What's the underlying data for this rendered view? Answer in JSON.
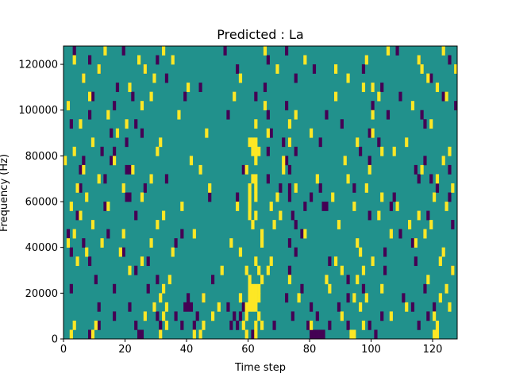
{
  "chart_data": {
    "type": "heatmap",
    "title": "Predicted : La",
    "xlabel": "Time step",
    "ylabel": "Frequency (Hz)",
    "xlim": [
      0,
      128
    ],
    "ylim": [
      0,
      128000
    ],
    "x_ticks": [
      0,
      20,
      40,
      60,
      80,
      100,
      120
    ],
    "y_ticks": [
      0,
      20000,
      40000,
      60000,
      80000,
      100000,
      120000
    ],
    "x_tick_labels": [
      "0",
      "20",
      "40",
      "60",
      "80",
      "100",
      "120"
    ],
    "y_tick_labels": [
      "0",
      "20000",
      "40000",
      "60000",
      "80000",
      "100000",
      "120000"
    ],
    "grid": false,
    "legend": "none",
    "colors": {
      "background": "#21918c",
      "low": "#440154",
      "high": "#fde725"
    },
    "cell_height": 4000,
    "cells_low": [
      [
        8,
        0
      ],
      [
        9,
        0
      ],
      [
        24,
        0
      ],
      [
        25,
        0
      ],
      [
        61,
        0
      ],
      [
        80,
        0
      ],
      [
        81,
        0
      ],
      [
        82,
        0
      ],
      [
        83,
        0
      ],
      [
        84,
        0
      ],
      [
        101,
        0
      ],
      [
        11,
        1
      ],
      [
        23,
        1
      ],
      [
        31,
        1
      ],
      [
        38,
        1
      ],
      [
        42,
        1
      ],
      [
        54,
        1
      ],
      [
        56,
        1
      ],
      [
        68,
        1
      ],
      [
        79,
        1
      ],
      [
        86,
        1
      ],
      [
        92,
        1
      ],
      [
        99,
        1
      ],
      [
        115,
        1
      ],
      [
        16,
        2
      ],
      [
        30,
        2
      ],
      [
        36,
        2
      ],
      [
        43,
        2
      ],
      [
        55,
        2
      ],
      [
        57,
        2
      ],
      [
        74,
        2
      ],
      [
        82,
        2
      ],
      [
        103,
        2
      ],
      [
        118,
        2
      ],
      [
        11,
        3
      ],
      [
        21,
        3
      ],
      [
        39,
        3
      ],
      [
        40,
        3
      ],
      [
        41,
        3
      ],
      [
        53,
        3
      ],
      [
        58,
        3
      ],
      [
        80,
        3
      ],
      [
        89,
        3
      ],
      [
        113,
        3
      ],
      [
        120,
        3
      ],
      [
        40,
        4
      ],
      [
        45,
        4
      ],
      [
        72,
        4
      ],
      [
        92,
        4
      ],
      [
        110,
        4
      ],
      [
        2,
        5
      ],
      [
        16,
        5
      ],
      [
        27,
        5
      ],
      [
        77,
        5
      ],
      [
        97,
        5
      ],
      [
        117,
        5
      ],
      [
        10,
        6
      ],
      [
        30,
        6
      ],
      [
        48,
        6
      ],
      [
        92,
        6
      ],
      [
        23,
        7
      ],
      [
        73,
        7
      ],
      [
        104,
        7
      ],
      [
        126,
        7
      ],
      [
        8,
        8
      ],
      [
        27,
        8
      ],
      [
        86,
        8
      ],
      [
        114,
        8
      ],
      [
        2,
        9
      ],
      [
        19,
        9
      ],
      [
        75,
        9
      ],
      [
        104,
        9
      ],
      [
        6,
        10
      ],
      [
        36,
        10
      ],
      [
        73,
        10
      ],
      [
        113,
        10
      ],
      [
        1,
        11
      ],
      [
        14,
        11
      ],
      [
        38,
        11
      ],
      [
        77,
        11
      ],
      [
        109,
        11
      ],
      [
        9,
        12
      ],
      [
        75,
        12
      ],
      [
        126,
        12
      ],
      [
        4,
        13
      ],
      [
        23,
        13
      ],
      [
        60,
        13
      ],
      [
        74,
        13
      ],
      [
        99,
        13
      ],
      [
        118,
        13
      ],
      [
        13,
        14
      ],
      [
        78,
        14
      ],
      [
        84,
        14
      ],
      [
        85,
        14
      ],
      [
        106,
        14
      ],
      [
        20,
        15
      ],
      [
        21,
        15
      ],
      [
        47,
        15
      ],
      [
        56,
        15
      ],
      [
        73,
        15
      ],
      [
        80,
        15
      ],
      [
        107,
        15
      ],
      [
        125,
        15
      ],
      [
        5,
        16
      ],
      [
        26,
        16
      ],
      [
        70,
        16
      ],
      [
        73,
        16
      ],
      [
        83,
        16
      ],
      [
        94,
        16
      ],
      [
        121,
        16
      ],
      [
        13,
        17
      ],
      [
        33,
        17
      ],
      [
        66,
        17
      ],
      [
        115,
        17
      ],
      [
        119,
        17
      ],
      [
        5,
        18
      ],
      [
        20,
        18
      ],
      [
        21,
        18
      ],
      [
        58,
        18
      ],
      [
        73,
        18
      ],
      [
        114,
        18
      ],
      [
        125,
        18
      ],
      [
        6,
        19
      ],
      [
        15,
        19
      ],
      [
        72,
        19
      ],
      [
        99,
        19
      ],
      [
        117,
        19
      ],
      [
        12,
        20
      ],
      [
        16,
        20
      ],
      [
        66,
        20
      ],
      [
        75,
        20
      ],
      [
        96,
        20
      ],
      [
        20,
        21
      ],
      [
        71,
        21
      ],
      [
        73,
        21
      ],
      [
        83,
        21
      ],
      [
        102,
        21
      ],
      [
        15,
        22
      ],
      [
        25,
        22
      ],
      [
        67,
        22
      ],
      [
        99,
        22
      ],
      [
        2,
        23
      ],
      [
        23,
        23
      ],
      [
        90,
        23
      ],
      [
        117,
        23
      ],
      [
        8,
        24
      ],
      [
        53,
        24
      ],
      [
        66,
        24
      ],
      [
        85,
        24
      ],
      [
        105,
        24
      ],
      [
        116,
        24
      ],
      [
        1,
        25
      ],
      [
        16,
        25
      ],
      [
        72,
        25
      ],
      [
        100,
        25
      ],
      [
        127,
        25
      ],
      [
        9,
        26
      ],
      [
        22,
        26
      ],
      [
        39,
        26
      ],
      [
        62,
        26
      ],
      [
        109,
        26
      ],
      [
        123,
        26
      ],
      [
        17,
        27
      ],
      [
        44,
        27
      ],
      [
        65,
        27
      ],
      [
        103,
        27
      ],
      [
        6,
        28
      ],
      [
        33,
        28
      ],
      [
        75,
        28
      ],
      [
        119,
        28
      ],
      [
        11,
        29
      ],
      [
        26,
        29
      ],
      [
        56,
        29
      ],
      [
        81,
        29
      ],
      [
        97,
        29
      ],
      [
        8,
        30
      ],
      [
        30,
        30
      ],
      [
        66,
        30
      ],
      [
        115,
        30
      ],
      [
        125,
        30
      ],
      [
        3,
        31
      ],
      [
        19,
        31
      ],
      [
        52,
        31
      ],
      [
        72,
        31
      ],
      [
        108,
        31
      ]
    ],
    "cells_high": [
      [
        2,
        0
      ],
      [
        9,
        0
      ],
      [
        31,
        0
      ],
      [
        42,
        0
      ],
      [
        44,
        0
      ],
      [
        59,
        0
      ],
      [
        62,
        0
      ],
      [
        93,
        0
      ],
      [
        94,
        0
      ],
      [
        120,
        0
      ],
      [
        121,
        0
      ],
      [
        3,
        1
      ],
      [
        10,
        1
      ],
      [
        33,
        1
      ],
      [
        45,
        1
      ],
      [
        58,
        1
      ],
      [
        62,
        1
      ],
      [
        64,
        1
      ],
      [
        80,
        1
      ],
      [
        97,
        1
      ],
      [
        121,
        1
      ],
      [
        26,
        2
      ],
      [
        32,
        2
      ],
      [
        48,
        2
      ],
      [
        59,
        2
      ],
      [
        63,
        2
      ],
      [
        90,
        2
      ],
      [
        106,
        2
      ],
      [
        120,
        2
      ],
      [
        29,
        3
      ],
      [
        33,
        3
      ],
      [
        50,
        3
      ],
      [
        59,
        3
      ],
      [
        60,
        3
      ],
      [
        61,
        3
      ],
      [
        62,
        3
      ],
      [
        96,
        3
      ],
      [
        111,
        3
      ],
      [
        125,
        3
      ],
      [
        31,
        4
      ],
      [
        45,
        4
      ],
      [
        57,
        4
      ],
      [
        60,
        4
      ],
      [
        61,
        4
      ],
      [
        62,
        4
      ],
      [
        63,
        4
      ],
      [
        76,
        4
      ],
      [
        94,
        4
      ],
      [
        98,
        4
      ],
      [
        122,
        4
      ],
      [
        32,
        5
      ],
      [
        60,
        5
      ],
      [
        61,
        5
      ],
      [
        62,
        5
      ],
      [
        63,
        5
      ],
      [
        86,
        5
      ],
      [
        103,
        5
      ],
      [
        124,
        5
      ],
      [
        34,
        6
      ],
      [
        60,
        6
      ],
      [
        64,
        6
      ],
      [
        73,
        6
      ],
      [
        85,
        6
      ],
      [
        95,
        6
      ],
      [
        118,
        6
      ],
      [
        21,
        7
      ],
      [
        51,
        7
      ],
      [
        59,
        7
      ],
      [
        63,
        7
      ],
      [
        66,
        7
      ],
      [
        90,
        7
      ],
      [
        97,
        7
      ],
      [
        126,
        7
      ],
      [
        4,
        8
      ],
      [
        25,
        8
      ],
      [
        62,
        8
      ],
      [
        67,
        8
      ],
      [
        88,
        8
      ],
      [
        100,
        8
      ],
      [
        122,
        8
      ],
      [
        7,
        9
      ],
      [
        18,
        9
      ],
      [
        35,
        9
      ],
      [
        57,
        9
      ],
      [
        96,
        9
      ],
      [
        123,
        9
      ],
      [
        1,
        10
      ],
      [
        12,
        10
      ],
      [
        28,
        10
      ],
      [
        54,
        10
      ],
      [
        64,
        10
      ],
      [
        95,
        10
      ],
      [
        114,
        10
      ],
      [
        3,
        11
      ],
      [
        19,
        11
      ],
      [
        42,
        11
      ],
      [
        64,
        11
      ],
      [
        78,
        11
      ],
      [
        106,
        11
      ],
      [
        117,
        11
      ],
      [
        9,
        12
      ],
      [
        30,
        12
      ],
      [
        61,
        12
      ],
      [
        68,
        12
      ],
      [
        89,
        12
      ],
      [
        112,
        12
      ],
      [
        119,
        12
      ],
      [
        5,
        13
      ],
      [
        32,
        13
      ],
      [
        60,
        13
      ],
      [
        62,
        13
      ],
      [
        70,
        13
      ],
      [
        102,
        13
      ],
      [
        115,
        13
      ],
      [
        2,
        14
      ],
      [
        14,
        14
      ],
      [
        38,
        14
      ],
      [
        56,
        14
      ],
      [
        60,
        14
      ],
      [
        67,
        14
      ],
      [
        94,
        14
      ],
      [
        108,
        14
      ],
      [
        124,
        14
      ],
      [
        7,
        15
      ],
      [
        25,
        15
      ],
      [
        60,
        15
      ],
      [
        62,
        15
      ],
      [
        69,
        15
      ],
      [
        87,
        15
      ],
      [
        103,
        15
      ],
      [
        120,
        15
      ],
      [
        4,
        16
      ],
      [
        19,
        16
      ],
      [
        47,
        16
      ],
      [
        60,
        16
      ],
      [
        62,
        16
      ],
      [
        75,
        16
      ],
      [
        98,
        16
      ],
      [
        126,
        16
      ],
      [
        11,
        17
      ],
      [
        28,
        17
      ],
      [
        61,
        17
      ],
      [
        62,
        17
      ],
      [
        82,
        17
      ],
      [
        92,
        17
      ],
      [
        121,
        17
      ],
      [
        6,
        18
      ],
      [
        22,
        18
      ],
      [
        44,
        18
      ],
      [
        59,
        18
      ],
      [
        71,
        18
      ],
      [
        99,
        18
      ],
      [
        116,
        18
      ],
      [
        0,
        19
      ],
      [
        16,
        19
      ],
      [
        41,
        19
      ],
      [
        62,
        19
      ],
      [
        71,
        19
      ],
      [
        91,
        19
      ],
      [
        123,
        19
      ],
      [
        3,
        20
      ],
      [
        30,
        20
      ],
      [
        61,
        20
      ],
      [
        62,
        20
      ],
      [
        63,
        20
      ],
      [
        103,
        20
      ],
      [
        107,
        20
      ],
      [
        125,
        20
      ],
      [
        9,
        21
      ],
      [
        31,
        21
      ],
      [
        60,
        21
      ],
      [
        61,
        21
      ],
      [
        62,
        21
      ],
      [
        73,
        21
      ],
      [
        95,
        21
      ],
      [
        111,
        21
      ],
      [
        17,
        22
      ],
      [
        46,
        22
      ],
      [
        66,
        22
      ],
      [
        80,
        22
      ],
      [
        100,
        22
      ],
      [
        5,
        23
      ],
      [
        20,
        23
      ],
      [
        62,
        23
      ],
      [
        73,
        23
      ],
      [
        119,
        23
      ],
      [
        14,
        24
      ],
      [
        37,
        24
      ],
      [
        75,
        24
      ],
      [
        100,
        24
      ],
      [
        1,
        25
      ],
      [
        25,
        25
      ],
      [
        65,
        25
      ],
      [
        113,
        25
      ],
      [
        8,
        26
      ],
      [
        28,
        26
      ],
      [
        55,
        26
      ],
      [
        88,
        26
      ],
      [
        102,
        26
      ],
      [
        124,
        26
      ],
      [
        21,
        27
      ],
      [
        40,
        27
      ],
      [
        97,
        27
      ],
      [
        100,
        27
      ],
      [
        121,
        27
      ],
      [
        6,
        28
      ],
      [
        29,
        28
      ],
      [
        57,
        28
      ],
      [
        92,
        28
      ],
      [
        118,
        28
      ],
      [
        11,
        29
      ],
      [
        26,
        29
      ],
      [
        69,
        29
      ],
      [
        88,
        29
      ],
      [
        116,
        29
      ],
      [
        127,
        29
      ],
      [
        3,
        30
      ],
      [
        24,
        30
      ],
      [
        35,
        30
      ],
      [
        78,
        30
      ],
      [
        98,
        30
      ],
      [
        115,
        30
      ],
      [
        13,
        31
      ],
      [
        32,
        31
      ],
      [
        65,
        31
      ],
      [
        105,
        31
      ],
      [
        123,
        31
      ]
    ]
  }
}
